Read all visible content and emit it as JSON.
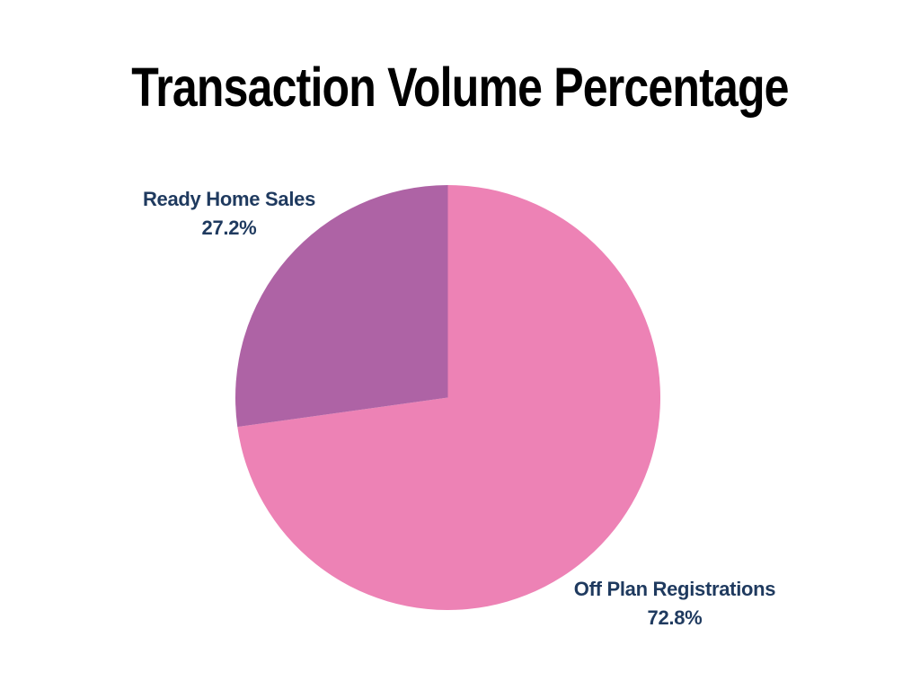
{
  "page": {
    "background_color": "#ffffff"
  },
  "chart_data": {
    "type": "pie",
    "title": "Transaction Volume Percentage",
    "title_color": "#000000",
    "label_color": "#1F3A5F",
    "legend_position": "none",
    "start_angle_deg": -90,
    "direction": "clockwise",
    "slices": [
      {
        "label": "Off Plan Registrations",
        "value": 72.8,
        "pct_label": "72.8%",
        "color": "#ED82B5"
      },
      {
        "label": "Ready Home Sales",
        "value": 27.2,
        "pct_label": "27.2%",
        "color": "#AE63A5"
      }
    ]
  }
}
